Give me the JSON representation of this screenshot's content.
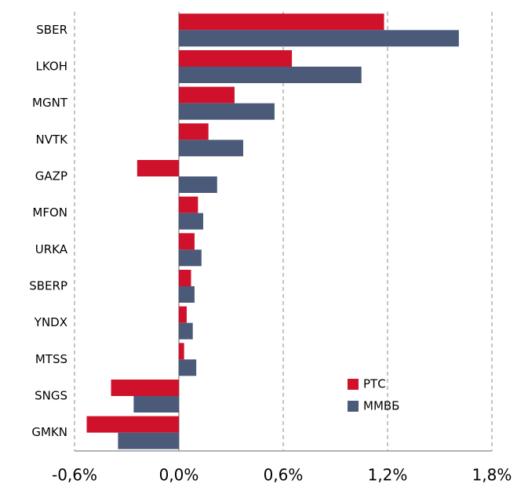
{
  "chart_data": {
    "type": "hbar",
    "categories": [
      "SBER",
      "LKOH",
      "MGNT",
      "NVTK",
      "GAZP",
      "MFON",
      "URKA",
      "SBERP",
      "YNDX",
      "MTSS",
      "SNGS",
      "GMKN"
    ],
    "series": [
      {
        "name": "РТС",
        "color": "#d0112b",
        "values": [
          1.18,
          0.65,
          0.32,
          0.17,
          -0.24,
          0.11,
          0.09,
          0.07,
          0.045,
          0.03,
          -0.39,
          -0.53
        ]
      },
      {
        "name": "ММВБ",
        "color": "#4a5a78",
        "values": [
          1.61,
          1.05,
          0.55,
          0.37,
          0.22,
          0.14,
          0.13,
          0.09,
          0.08,
          0.1,
          -0.26,
          -0.35
        ]
      }
    ],
    "xlim": [
      -0.6,
      1.8
    ],
    "xticks": [
      {
        "value": -0.6,
        "label": "-0,6%"
      },
      {
        "value": 0,
        "label": "0,0%"
      },
      {
        "value": 0.6,
        "label": "0,6%"
      },
      {
        "value": 1.2,
        "label": "1,2%"
      },
      {
        "value": 1.8,
        "label": "1,8%"
      }
    ],
    "grid": true,
    "legend": "lower right"
  }
}
